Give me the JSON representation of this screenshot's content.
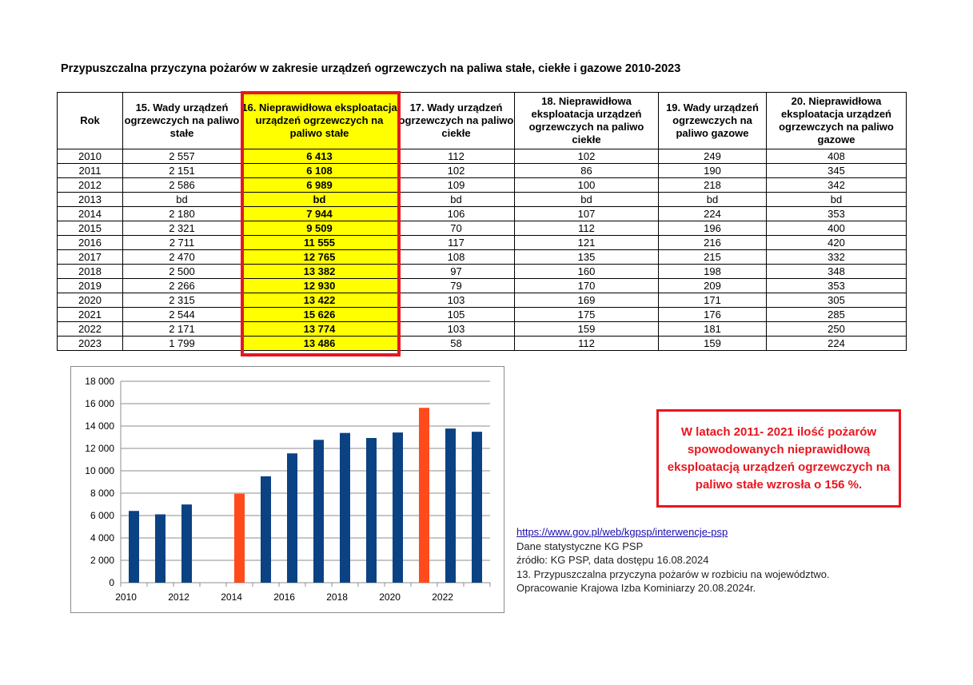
{
  "title": "Przypuszczalna przyczyna pożarów w zakresie urządzeń ogrzewczych na paliwa stałe, ciekłe i gazowe 2010-2023",
  "table": {
    "headers": [
      "Rok",
      "15. Wady urządzeń ogrzewczych na paliwo stałe",
      "16. Nieprawidłowa eksploatacja urządzeń ogrzewczych na paliwo stałe",
      "17. Wady urządzeń ogrzewczych na paliwo ciekłe",
      "18. Nieprawidłowa eksploatacja urządzeń ogrzewczych na paliwo ciekłe",
      "19. Wady urządzeń ogrzewczych na paliwo gazowe",
      "20. Nieprawidłowa eksploatacja urządzeń ogrzewczych na paliwo gazowe"
    ],
    "rows": [
      [
        "2010",
        "2 557",
        "6 413",
        "112",
        "102",
        "249",
        "408"
      ],
      [
        "2011",
        "2 151",
        "6 108",
        "102",
        "86",
        "190",
        "345"
      ],
      [
        "2012",
        "2 586",
        "6 989",
        "109",
        "100",
        "218",
        "342"
      ],
      [
        "2013",
        "bd",
        "bd",
        "bd",
        "bd",
        "bd",
        "bd"
      ],
      [
        "2014",
        "2 180",
        "7 944",
        "106",
        "107",
        "224",
        "353"
      ],
      [
        "2015",
        "2 321",
        "9 509",
        "70",
        "112",
        "196",
        "400"
      ],
      [
        "2016",
        "2 711",
        "11 555",
        "117",
        "121",
        "216",
        "420"
      ],
      [
        "2017",
        "2 470",
        "12 765",
        "108",
        "135",
        "215",
        "332"
      ],
      [
        "2018",
        "2 500",
        "13 382",
        "97",
        "160",
        "198",
        "348"
      ],
      [
        "2019",
        "2 266",
        "12 930",
        "79",
        "170",
        "209",
        "353"
      ],
      [
        "2020",
        "2 315",
        "13 422",
        "103",
        "169",
        "171",
        "305"
      ],
      [
        "2021",
        "2 544",
        "15 626",
        "105",
        "175",
        "176",
        "285"
      ],
      [
        "2022",
        "2 171",
        "13 774",
        "103",
        "159",
        "181",
        "250"
      ],
      [
        "2023",
        "1 799",
        "13 486",
        "58",
        "112",
        "159",
        "224"
      ]
    ]
  },
  "chart_data": {
    "type": "bar",
    "x": [
      2010,
      2011,
      2012,
      2013,
      2014,
      2015,
      2016,
      2017,
      2018,
      2019,
      2020,
      2021,
      2022,
      2023
    ],
    "values": [
      6413,
      6108,
      6989,
      null,
      7944,
      9509,
      11555,
      12765,
      13382,
      12930,
      13422,
      15626,
      13774,
      13486
    ],
    "highlight_years": [
      2014,
      2021
    ],
    "bar_color": "#0b4283",
    "highlight_color": "#ff4a1c",
    "ylim": [
      0,
      18000
    ],
    "yticks": [
      "0",
      "2 000",
      "4 000",
      "6 000",
      "8 000",
      "10 000",
      "12 000",
      "14 000",
      "16 000",
      "18 000"
    ],
    "xticks": [
      "2010",
      "2012",
      "2014",
      "2016",
      "2018",
      "2020",
      "2022"
    ],
    "grid": true
  },
  "note": "W latach  2011- 2021 ilość pożarów spowodowanych nieprawidłową eksploatacją urządzeń ogrzewczych na paliwo stałe wzrosła o 156 %.",
  "source": {
    "link": "https://www.gov.pl/web/kgpsp/interwencje-psp",
    "lines": [
      "Dane statystyczne KG PSP",
      "źródło: KG PSP, data dostępu 16.08.2024",
      "13. Przypuszczalna przyczyna pożarów w rozbiciu na województwo.",
      "Opracowanie Krajowa Izba Kominiarzy  20.08.2024r."
    ]
  }
}
